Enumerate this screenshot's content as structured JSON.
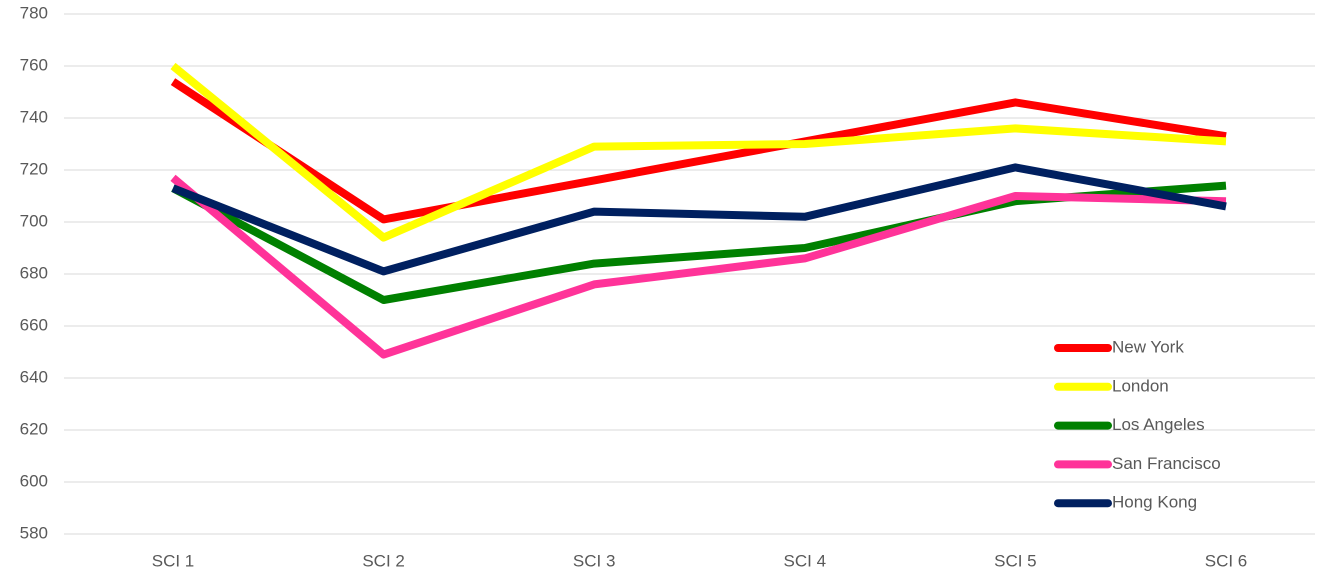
{
  "chart_data": {
    "type": "line",
    "categories": [
      "SCI 1",
      "SCI 2",
      "SCI 3",
      "SCI 4",
      "SCI 5",
      "SCI 6"
    ],
    "series": [
      {
        "name": "New York",
        "color": "#ff0000",
        "values": [
          754,
          701,
          716,
          731,
          746,
          733
        ]
      },
      {
        "name": "London",
        "color": "#ffff00",
        "values": [
          760,
          694,
          729,
          730,
          736,
          731
        ]
      },
      {
        "name": "Los Angeles",
        "color": "#008000",
        "values": [
          713,
          670,
          684,
          690,
          708,
          714
        ]
      },
      {
        "name": "San Francisco",
        "color": "#ff3399",
        "values": [
          717,
          649,
          676,
          686,
          710,
          708
        ]
      },
      {
        "name": "Hong Kong",
        "color": "#002060",
        "values": [
          713,
          681,
          704,
          702,
          721,
          706
        ]
      }
    ],
    "ylim": [
      580,
      780
    ],
    "yticks": [
      580,
      600,
      620,
      640,
      660,
      680,
      700,
      720,
      740,
      760,
      780
    ],
    "grid": true,
    "legend": "lower right"
  }
}
